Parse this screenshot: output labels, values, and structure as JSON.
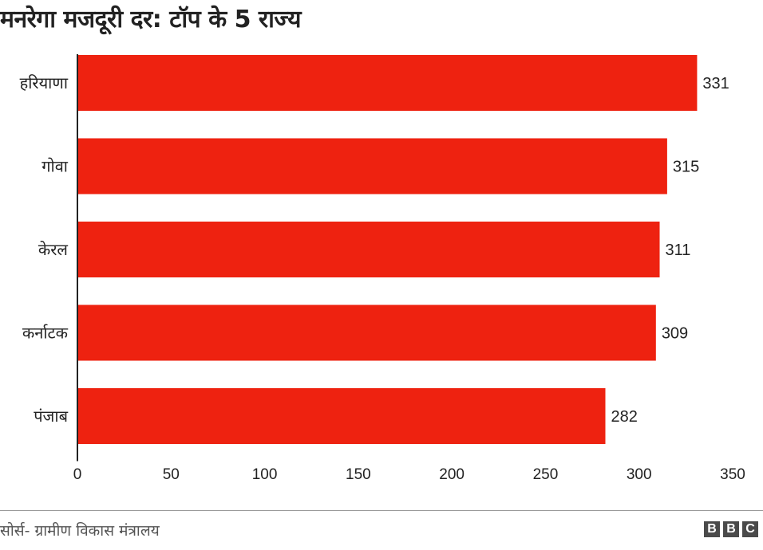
{
  "chart_data": {
    "type": "bar",
    "orientation": "horizontal",
    "title": "मनरेगा मजदूरी दर: टॉप के 5 राज्य",
    "categories": [
      "हरियाणा",
      "गोवा",
      "केरल",
      "कर्नाटक",
      "पंजाब"
    ],
    "values": [
      331,
      315,
      311,
      309,
      282
    ],
    "xlim": [
      0,
      350
    ],
    "xticks": [
      "0",
      "50",
      "100",
      "150",
      "200",
      "250",
      "300",
      "350"
    ],
    "xlabel": "",
    "ylabel": "",
    "grid": false,
    "bar_color": "#ee2210",
    "source": "सोर्स- ग्रामीण विकास मंत्रालय"
  },
  "logo": {
    "letters": [
      "B",
      "B",
      "C"
    ],
    "color": "#4a4a4a"
  }
}
